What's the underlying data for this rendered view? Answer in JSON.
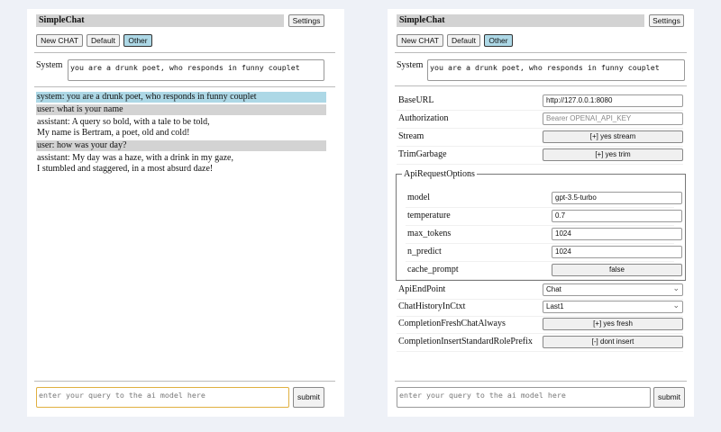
{
  "app_title": "SimpleChat",
  "settings_label": "Settings",
  "buttons": {
    "new_chat": "New CHAT",
    "default": "Default",
    "other": "Other"
  },
  "system": {
    "label": "System",
    "value": "you are a drunk poet, who responds in funny couplet"
  },
  "chat": [
    {
      "role": "system",
      "text": "system: you are a drunk poet, who responds in funny couplet"
    },
    {
      "role": "user",
      "text": "user: what is your name"
    },
    {
      "role": "assistant",
      "text": "assistant: A query so bold, with a tale to be told,\nMy name is Bertram, a poet, old and cold!"
    },
    {
      "role": "user",
      "text": "user: how was your day?"
    },
    {
      "role": "assistant",
      "text": "assistant: My day was a haze, with a drink in my gaze,\nI stumbled and staggered, in a most absurd daze!"
    }
  ],
  "query": {
    "placeholder": "enter your query to the ai model here",
    "submit": "submit"
  },
  "settings": {
    "base_url": {
      "label": "BaseURL",
      "value": "http://127.0.0.1:8080"
    },
    "authorization": {
      "label": "Authorization",
      "placeholder": "Bearer OPENAI_API_KEY"
    },
    "stream": {
      "label": "Stream",
      "value": "[+] yes stream"
    },
    "trim": {
      "label": "TrimGarbage",
      "value": "[+] yes trim"
    },
    "api_options": {
      "legend": "ApiRequestOptions",
      "model": {
        "label": "model",
        "value": "gpt-3.5-turbo"
      },
      "temperature": {
        "label": "temperature",
        "value": "0.7"
      },
      "max_tokens": {
        "label": "max_tokens",
        "value": "1024"
      },
      "n_predict": {
        "label": "n_predict",
        "value": "1024"
      },
      "cache_prompt": {
        "label": "cache_prompt",
        "value": "false"
      }
    },
    "api_endpoint": {
      "label": "ApiEndPoint",
      "value": "Chat"
    },
    "history": {
      "label": "ChatHistoryInCtxt",
      "value": "Last1"
    },
    "fresh": {
      "label": "CompletionFreshChatAlways",
      "value": "[+] yes fresh"
    },
    "role_prefix": {
      "label": "CompletionInsertStandardRolePrefix",
      "value": "[-] dont insert"
    }
  }
}
